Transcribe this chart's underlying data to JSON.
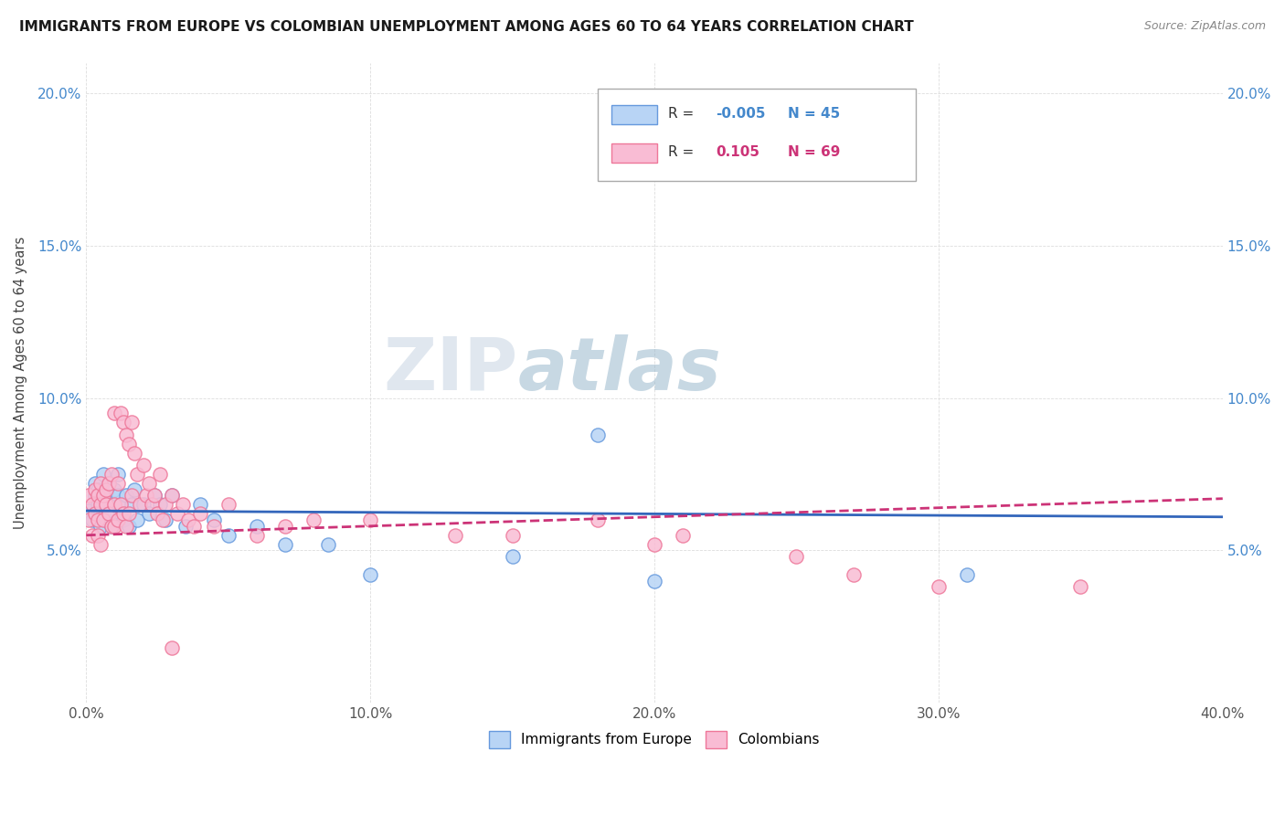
{
  "title": "IMMIGRANTS FROM EUROPE VS COLOMBIAN UNEMPLOYMENT AMONG AGES 60 TO 64 YEARS CORRELATION CHART",
  "source_text": "Source: ZipAtlas.com",
  "xlabel": "",
  "ylabel": "Unemployment Among Ages 60 to 64 years",
  "xlim": [
    0.0,
    0.4
  ],
  "ylim": [
    0.0,
    0.21
  ],
  "xtick_labels": [
    "0.0%",
    "",
    "",
    "",
    "",
    "10.0%",
    "",
    "",
    "",
    "",
    "20.0%",
    "",
    "",
    "",
    "",
    "30.0%",
    "",
    "",
    "",
    "",
    "40.0%"
  ],
  "xtick_values": [
    0.0,
    0.02,
    0.04,
    0.06,
    0.08,
    0.1,
    0.12,
    0.14,
    0.16,
    0.18,
    0.2,
    0.22,
    0.24,
    0.26,
    0.28,
    0.3,
    0.32,
    0.34,
    0.36,
    0.38,
    0.4
  ],
  "xtick_major_labels": [
    "0.0%",
    "10.0%",
    "20.0%",
    "30.0%",
    "40.0%"
  ],
  "xtick_major_values": [
    0.0,
    0.1,
    0.2,
    0.3,
    0.4
  ],
  "ytick_labels": [
    "5.0%",
    "10.0%",
    "15.0%",
    "20.0%"
  ],
  "ytick_values": [
    0.05,
    0.1,
    0.15,
    0.2
  ],
  "legend_r1": "-0.005",
  "legend_n1": "45",
  "legend_r2": "0.105",
  "legend_n2": "69",
  "series1_color": "#b8d4f5",
  "series2_color": "#f9bcd4",
  "series1_edge": "#6699dd",
  "series2_edge": "#ee7799",
  "trendline1_color": "#3366bb",
  "trendline2_color": "#cc3377",
  "trendline1_slope": -0.005,
  "trendline1_intercept": 0.063,
  "trendline2_slope": 0.03,
  "trendline2_intercept": 0.055,
  "watermark_zip": "ZIP",
  "watermark_atlas": "atlas",
  "watermark_color_zip": "#c8d8e8",
  "watermark_color_atlas": "#a8c0d0",
  "series1_x": [
    0.001,
    0.002,
    0.003,
    0.003,
    0.004,
    0.004,
    0.005,
    0.005,
    0.006,
    0.006,
    0.007,
    0.007,
    0.008,
    0.008,
    0.009,
    0.01,
    0.01,
    0.011,
    0.011,
    0.012,
    0.012,
    0.013,
    0.014,
    0.015,
    0.016,
    0.017,
    0.018,
    0.02,
    0.022,
    0.024,
    0.026,
    0.028,
    0.03,
    0.035,
    0.04,
    0.045,
    0.05,
    0.06,
    0.07,
    0.085,
    0.1,
    0.15,
    0.2,
    0.31,
    0.18
  ],
  "series1_y": [
    0.063,
    0.06,
    0.068,
    0.072,
    0.065,
    0.07,
    0.058,
    0.062,
    0.065,
    0.075,
    0.06,
    0.068,
    0.063,
    0.072,
    0.058,
    0.065,
    0.07,
    0.068,
    0.075,
    0.062,
    0.065,
    0.06,
    0.068,
    0.058,
    0.065,
    0.07,
    0.06,
    0.065,
    0.062,
    0.068,
    0.065,
    0.06,
    0.068,
    0.058,
    0.065,
    0.06,
    0.055,
    0.058,
    0.052,
    0.052,
    0.042,
    0.048,
    0.04,
    0.042,
    0.088
  ],
  "series2_x": [
    0.001,
    0.001,
    0.002,
    0.002,
    0.003,
    0.003,
    0.004,
    0.004,
    0.004,
    0.005,
    0.005,
    0.005,
    0.006,
    0.006,
    0.007,
    0.007,
    0.008,
    0.008,
    0.009,
    0.009,
    0.01,
    0.01,
    0.01,
    0.011,
    0.011,
    0.012,
    0.012,
    0.013,
    0.013,
    0.014,
    0.014,
    0.015,
    0.015,
    0.016,
    0.016,
    0.017,
    0.018,
    0.019,
    0.02,
    0.021,
    0.022,
    0.023,
    0.024,
    0.025,
    0.026,
    0.027,
    0.028,
    0.03,
    0.032,
    0.034,
    0.036,
    0.038,
    0.04,
    0.045,
    0.05,
    0.06,
    0.07,
    0.08,
    0.1,
    0.13,
    0.15,
    0.18,
    0.2,
    0.21,
    0.25,
    0.27,
    0.3,
    0.35,
    0.03
  ],
  "series2_y": [
    0.068,
    0.06,
    0.065,
    0.055,
    0.062,
    0.07,
    0.055,
    0.06,
    0.068,
    0.052,
    0.065,
    0.072,
    0.068,
    0.06,
    0.07,
    0.065,
    0.062,
    0.072,
    0.058,
    0.075,
    0.065,
    0.095,
    0.058,
    0.072,
    0.06,
    0.095,
    0.065,
    0.092,
    0.062,
    0.088,
    0.058,
    0.085,
    0.062,
    0.092,
    0.068,
    0.082,
    0.075,
    0.065,
    0.078,
    0.068,
    0.072,
    0.065,
    0.068,
    0.062,
    0.075,
    0.06,
    0.065,
    0.068,
    0.062,
    0.065,
    0.06,
    0.058,
    0.062,
    0.058,
    0.065,
    0.055,
    0.058,
    0.06,
    0.06,
    0.055,
    0.055,
    0.06,
    0.052,
    0.055,
    0.048,
    0.042,
    0.038,
    0.038,
    0.018
  ]
}
